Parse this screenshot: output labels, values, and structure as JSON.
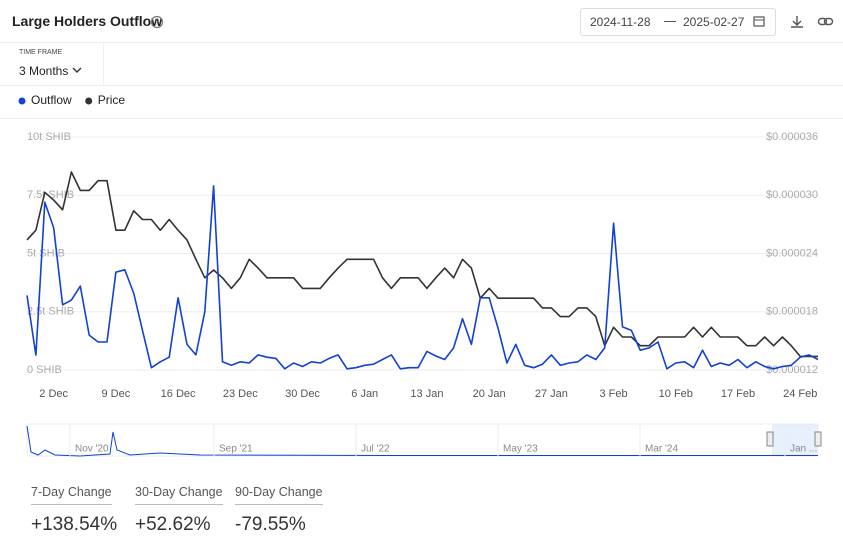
{
  "header": {
    "title": "Large Holders Outflow",
    "date_from": "2024-11-28",
    "date_to": "2025-02-27"
  },
  "time_frame": {
    "label": "TIME FRAME",
    "value": "3 Months"
  },
  "chart_data": {
    "type": "line",
    "categories": [
      null,
      null,
      null,
      "2 Dec",
      null,
      null,
      null,
      null,
      null,
      null,
      "9 Dec",
      null,
      null,
      null,
      null,
      null,
      null,
      "16 Dec",
      null,
      null,
      null,
      null,
      null,
      null,
      "23 Dec",
      null,
      null,
      null,
      null,
      null,
      null,
      "30 Dec",
      null,
      null,
      null,
      null,
      null,
      null,
      "6 Jan",
      null,
      null,
      null,
      null,
      null,
      null,
      "13 Jan",
      null,
      null,
      null,
      null,
      null,
      null,
      "20 Jan",
      null,
      null,
      null,
      null,
      null,
      null,
      "27 Jan",
      null,
      null,
      null,
      null,
      null,
      null,
      "3 Feb",
      null,
      null,
      null,
      null,
      null,
      null,
      "10 Feb",
      null,
      null,
      null,
      null,
      null,
      null,
      "17 Feb",
      null,
      null,
      null,
      null,
      null,
      null,
      "24 Feb",
      null,
      null
    ],
    "series": [
      {
        "name": "Outflow",
        "color": "#1241d3",
        "values": [
          3.2,
          0.64,
          7.2,
          6.1,
          2.8,
          3.0,
          3.6,
          1.5,
          1.2,
          1.2,
          4.2,
          4.3,
          3.3,
          1.7,
          0.1,
          0.35,
          0.55,
          3.1,
          1.1,
          0.65,
          2.5,
          7.9,
          0.35,
          0.2,
          0.35,
          0.3,
          0.65,
          0.55,
          0.5,
          0.05,
          0.3,
          0.15,
          0.35,
          0.3,
          0.5,
          0.65,
          0.05,
          0.1,
          0.2,
          0.25,
          0.45,
          0.65,
          0.05,
          0.1,
          0.1,
          0.8,
          0.6,
          0.45,
          0.95,
          2.2,
          1.1,
          3.1,
          3.1,
          1.8,
          0.3,
          1.1,
          0.2,
          0.1,
          0.25,
          0.65,
          0.2,
          0.3,
          0.35,
          0.65,
          0.45,
          0.95,
          6.3,
          1.85,
          1.7,
          0.85,
          0.95,
          1.2,
          0.05,
          0.3,
          0.35,
          0.1,
          0.85,
          0.15,
          0.3,
          0.2,
          0.45,
          0.1,
          0.35,
          0.15,
          0.05,
          0.15,
          0.2,
          0.55,
          0.65,
          0.45
        ]
      },
      {
        "name": "Price",
        "color": "#333333",
        "axis": "y2",
        "values": [
          2.54e-05,
          2.64e-05,
          3.03e-05,
          2.95e-05,
          2.85e-05,
          3.24e-05,
          3.05e-05,
          3.05e-05,
          3.15e-05,
          3.15e-05,
          2.64e-05,
          2.64e-05,
          2.84e-05,
          2.75e-05,
          2.75e-05,
          2.64e-05,
          2.75e-05,
          2.64e-05,
          2.54e-05,
          2.34e-05,
          2.15e-05,
          2.23e-05,
          2.15e-05,
          2.04e-05,
          2.15e-05,
          2.34e-05,
          2.25e-05,
          2.15e-05,
          2.15e-05,
          2.15e-05,
          2.15e-05,
          2.04e-05,
          2.04e-05,
          2.04e-05,
          2.15e-05,
          2.25e-05,
          2.34e-05,
          2.34e-05,
          2.34e-05,
          2.34e-05,
          2.15e-05,
          2.04e-05,
          2.15e-05,
          2.15e-05,
          2.15e-05,
          2.04e-05,
          2.15e-05,
          2.25e-05,
          2.15e-05,
          2.34e-05,
          2.25e-05,
          1.94e-05,
          2.04e-05,
          1.94e-05,
          1.94e-05,
          1.94e-05,
          1.94e-05,
          1.94e-05,
          1.84e-05,
          1.84e-05,
          1.75e-05,
          1.75e-05,
          1.84e-05,
          1.84e-05,
          1.75e-05,
          1.45e-05,
          1.64e-05,
          1.54e-05,
          1.54e-05,
          1.45e-05,
          1.45e-05,
          1.54e-05,
          1.54e-05,
          1.54e-05,
          1.54e-05,
          1.64e-05,
          1.54e-05,
          1.64e-05,
          1.54e-05,
          1.54e-05,
          1.54e-05,
          1.45e-05,
          1.45e-05,
          1.54e-05,
          1.45e-05,
          1.54e-05,
          1.45e-05,
          1.34e-05,
          1.34e-05,
          1.34e-05
        ]
      }
    ],
    "ylim": [
      0,
      10
    ],
    "yticks": [
      {
        "value": 0,
        "label": "0 SHIB"
      },
      {
        "value": 2.5,
        "label": "2.5t SHIB"
      },
      {
        "value": 5,
        "label": "5t SHIB"
      },
      {
        "value": 7.5,
        "label": "7.5t SHIB"
      },
      {
        "value": 10,
        "label": "10t SHIB"
      }
    ],
    "y2lim": [
      1.2e-05,
      3.6e-05
    ],
    "y2ticks": [
      {
        "value": 1.2e-05,
        "label": "$0.000012"
      },
      {
        "value": 1.8e-05,
        "label": "$0.000018"
      },
      {
        "value": 2.4e-05,
        "label": "$0.000024"
      },
      {
        "value": 3e-05,
        "label": "$0.000030"
      },
      {
        "value": 3.6e-05,
        "label": "$0.000036"
      }
    ],
    "grid": true
  },
  "navigator": {
    "labels": [
      "Nov '20",
      "Sep '21",
      "Jul '22",
      "May '23",
      "Mar '24",
      "Jan ..."
    ]
  },
  "stats": [
    {
      "label": "7-Day Change",
      "value": "+138.54%"
    },
    {
      "label": "30-Day Change",
      "value": "+52.62%"
    },
    {
      "label": "90-Day Change",
      "value": "-79.55%"
    }
  ]
}
